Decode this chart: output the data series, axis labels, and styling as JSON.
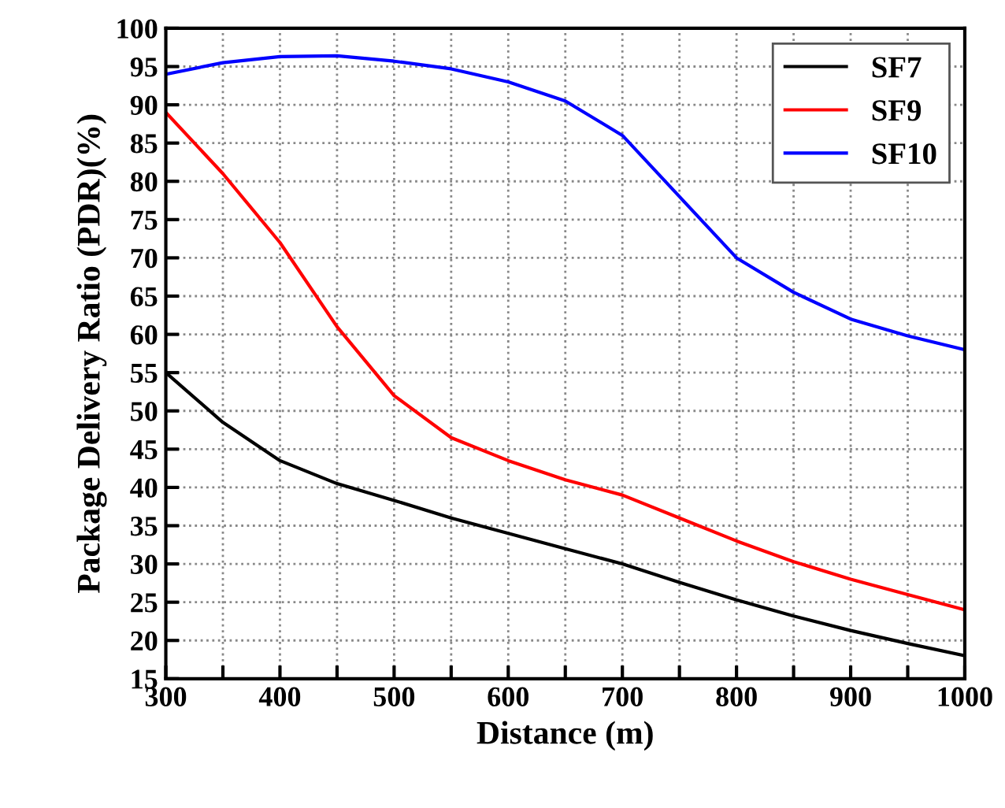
{
  "chart_data": {
    "type": "line",
    "xlabel": "Distance (m)",
    "ylabel": "Package Delivery Ratio (PDR)(%)",
    "x": [
      300,
      350,
      400,
      450,
      500,
      550,
      600,
      650,
      700,
      750,
      800,
      850,
      900,
      950,
      1000
    ],
    "series": [
      {
        "name": "SF7",
        "color": "#000000",
        "values": [
          55,
          48.5,
          43.5,
          40.5,
          38.3,
          36,
          34,
          32,
          30,
          27.6,
          25.3,
          23.2,
          21.3,
          19.6,
          18
        ]
      },
      {
        "name": "SF9",
        "color": "#ff0000",
        "values": [
          89,
          81,
          72,
          61,
          52,
          46.5,
          43.5,
          41,
          39,
          36,
          33,
          30.3,
          28,
          26,
          24
        ]
      },
      {
        "name": "SF10",
        "color": "#0000ff",
        "values": [
          94,
          95.5,
          96.3,
          96.4,
          95.7,
          94.7,
          93,
          90.5,
          86,
          78,
          70,
          65.5,
          62,
          59.8,
          58
        ]
      }
    ],
    "xlim": [
      300,
      1000
    ],
    "ylim": [
      15,
      100
    ],
    "xticks": [
      300,
      {
        "value": 350,
        "label": null
      },
      400,
      {
        "value": 450,
        "label": null
      },
      500,
      {
        "value": 550,
        "label": null
      },
      600,
      {
        "value": 650,
        "label": null
      },
      700,
      {
        "value": 750,
        "label": null
      },
      800,
      {
        "value": 850,
        "label": null
      },
      900,
      {
        "value": 950,
        "label": null
      },
      1000
    ],
    "yticks": [
      15,
      20,
      25,
      30,
      35,
      40,
      45,
      50,
      55,
      60,
      65,
      70,
      75,
      80,
      85,
      90,
      95,
      100
    ],
    "grid": true,
    "legend": "top right",
    "marker": "none",
    "line_style": "solid"
  }
}
